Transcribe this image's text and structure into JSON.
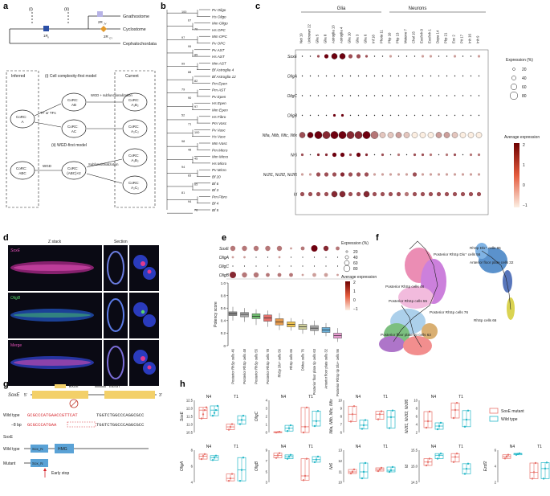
{
  "panels": {
    "a": {
      "letter": "a",
      "roman_i": "(i)",
      "roman_ii": "(ii)",
      "tips": [
        "Gnathostome",
        "Cyclostome",
        "Cephalochordata"
      ],
      "node_1r": "1R",
      "node_1r_sub": "V",
      "node_2r_jv": "2R",
      "node_2r_jv_sub": "JV",
      "node_2r_cy": "2R",
      "node_2r_cy_sub": "CY",
      "inferred": "Inferred",
      "current": "Current",
      "model_i": "(i) Cell complexity-first model",
      "model_ii": "(ii) WGD-first model",
      "tf_label": "TF or TFs",
      "wgd_sub": "WGD + subfunctionalization",
      "wgd": "WGD",
      "subfunc": "Subfunctionalization",
      "corc": "CoRC:",
      "states_i": [
        "A",
        "AB",
        "AC",
        "A₁B₂",
        "A₂C₂"
      ],
      "states_ii": [
        "ABC",
        "(ABC)×2",
        "A₁B₂",
        "A₂C₂"
      ]
    },
    "b": {
      "letter": "b",
      "leaves": [
        "Pv Oligo",
        "Hs Oligo",
        "Mm Oligo",
        "Hs OPC",
        "Mm OPC",
        "Pv OPC",
        "Pv AST",
        "Hs AST",
        "Mm AST",
        "Bf Astroglia 4",
        "Bf Astroglia 12",
        "Pm Epen",
        "Pm AST",
        "Pv Epen",
        "Hs Epen",
        "Mm Epen",
        "Hs Fibro",
        "Pm Vasc",
        "Pv Vasc",
        "Hs Vasc",
        "Mm Vasc",
        "Pm Micro",
        "Mm Micro",
        "Hs Micro",
        "Pv Micro",
        "Bf 20",
        "Bf 6",
        "Bf 3",
        "Pm Fibro",
        "Bf 4",
        "Bf 5"
      ],
      "bootstrap": [
        "100",
        "67",
        "70",
        "97",
        "99",
        "85",
        "99",
        "88",
        "82",
        "79",
        "90",
        "97",
        "52",
        "71",
        "100",
        "98",
        "48",
        "45",
        "94",
        "83",
        "65",
        "81",
        "94",
        "76"
      ]
    },
    "c": {
      "letter": "c",
      "group_glia": "Glia",
      "group_neurons": "Neurons",
      "columns": [
        "Not 19",
        "Unknown 22",
        "Glia 5",
        "Glia 8",
        "Astroglia 13",
        "Astroglia 4",
        "Glia 10",
        "Glia 3",
        "Glia 6",
        "Inf 18",
        "Photo 11",
        "Pkp 10",
        "Pkp 13",
        "Motone 7",
        "Chol 15",
        "Exc/Inh 0",
        "Exc/Inh 1",
        "Dopa 14",
        "Pkp 21",
        "Exc 2",
        "Pit 17",
        "Inh 16",
        "Inh 9"
      ],
      "rows": [
        "SoxE",
        "OligA",
        "OligC",
        "OligB",
        "Nfia, Nfib, Nfic, Nfix",
        "Nr6",
        "Nr2f1, Nr2f2, Nr2f6",
        "Id"
      ],
      "legend_size_title": "Expression (%)",
      "legend_size_values": [
        "20",
        "40",
        "60",
        "80"
      ],
      "legend_color_title": "Average expression",
      "legend_color_ticks": [
        "2",
        "1",
        "0",
        "−1"
      ]
    },
    "d": {
      "letter": "d",
      "z_stack": "Z stack",
      "section": "Section",
      "labels": [
        "SoxE",
        "OligB",
        "Merge"
      ]
    },
    "e": {
      "letter": "e",
      "rows": [
        "SoxE",
        "OligA",
        "OligC",
        "OligB"
      ],
      "legend_size_title": "Expression (%)",
      "legend_size_values": [
        "20",
        "40",
        "60",
        "80"
      ],
      "legend_color_title": "Average expression",
      "legend_color_ticks": [
        "2",
        "1",
        "0",
        "−1"
      ],
      "y_axis": "Potency score",
      "y_ticks": [
        "1.0",
        "0.8",
        "0.6",
        "0.4",
        "0.2",
        "0"
      ],
      "categories": [
        "Posterior RhSp cells 46",
        "Posterior RhSp cells 48",
        "Posterior RhSp cells 55",
        "Posterior RhSp cells 78",
        "RhSp Dlx+ cells 56",
        "RhSp cells 66",
        "DiMes cells 76",
        "Posterior floor plate tip cells 63",
        "Anterior floor plate cells 32",
        "Posterior RhSp tip Dlx+ cells 56"
      ]
    },
    "f": {
      "letter": "f",
      "labels": [
        "Posterior RhSp Dlx⁺ cells 56",
        "Posterior RhSp cells 48",
        "Posterior RhSp cells 55",
        "Posterior RhSp cells 76",
        "Anterior floor plate cells 32",
        "RhSp Dlx⁺ cells 86",
        "Posterior floor plate tip cells 63",
        "RhSp cells 66"
      ]
    },
    "g": {
      "letter": "g",
      "gene": "SoxE",
      "five": "5′",
      "three": "3′",
      "legend_exon": "Exon",
      "legend_intron": "Intron",
      "wild_type": "Wild type",
      "del": "−8 bp",
      "seq_wt_red": "GCGCCCATGAACCGTTCAT",
      "seq_wt_black": "TGGTCTGGCCCAGGCGCC",
      "seq_mut_red": "GCGCCCATGAA",
      "seq_mut_black": "TGGTCTGGCCCAGGCGCC",
      "protein_title": "SoxE",
      "protein_wt": "Wild type",
      "protein_mut": "Mutant",
      "domain_sox": "Sox_N",
      "domain_hmg": "HMG",
      "early_stop": "Early stop"
    },
    "h": {
      "letter": "h",
      "stage_n4": "N4",
      "stage_t1": "T1",
      "legend_mut": "SoxE mutant",
      "legend_wt": "Wild type",
      "colors": {
        "mutant": "#e8736c",
        "wild_type": "#27b8c8"
      },
      "plots": [
        {
          "gene": "SoxE",
          "ticks": [
            "12.5",
            "12.0",
            "11.5",
            "11.0",
            "10.5"
          ],
          "ylim": [
            10.3,
            12.6
          ],
          "n4": {
            "mut": [
              11.3,
              11.6,
              11.9,
              12.1
            ],
            "wt": [
              11.5,
              11.7,
              11.9,
              12.2
            ]
          },
          "t1": {
            "mut": [
              10.5,
              10.7,
              10.9
            ],
            "wt": [
              10.9,
              11.2,
              11.5
            ]
          }
        },
        {
          "gene": "OligC",
          "ticks": [
            "4",
            "3",
            "2",
            "1",
            "0"
          ],
          "ylim": [
            0,
            4.5
          ],
          "n4": {
            "mut": [
              0,
              0.05,
              0.1
            ],
            "wt": [
              0.2,
              0.6,
              1.0
            ]
          },
          "t1": {
            "mut": [
              0,
              0.8,
              3.5
            ],
            "wt": [
              0.9,
              1.6,
              3.0
            ]
          }
        },
        {
          "gene": "Nfia, Nfib, Nfic, Nfix",
          "ticks": [
            "10",
            "9",
            "8",
            "7",
            "6"
          ],
          "ylim": [
            6,
            10.4
          ],
          "n4": {
            "mut": [
              7.5,
              8.5,
              9.6
            ],
            "wt": [
              6.5,
              7.0,
              7.7
            ]
          },
          "t1": {
            "mut": [
              7.8,
              8.5,
              8.9
            ],
            "wt": [
              6.6,
              8.1,
              9.0
            ]
          }
        },
        {
          "gene": "Nr2f1, Nr2f2, Nr2f6",
          "ticks": [
            "10",
            "8",
            "6",
            "4",
            "2"
          ],
          "ylim": [
            1,
            11
          ],
          "n4": {
            "mut": [
              2.5,
              4.5,
              7.5
            ],
            "wt": [
              2.0,
              3.0,
              4.0
            ]
          },
          "t1": {
            "mut": [
              5.5,
              8.0,
              10.2
            ],
            "wt": [
              2.8,
              5.0,
              7.8
            ]
          }
        },
        {
          "gene": "OligA",
          "ticks": [
            "8",
            "6",
            "4"
          ],
          "ylim": [
            2.5,
            9
          ],
          "n4": {
            "mut": [
              7.2,
              7.8,
              8.2
            ],
            "wt": [
              7.0,
              7.5,
              7.9
            ]
          },
          "t1": {
            "mut": [
              2.8,
              3.3,
              4.2
            ],
            "wt": [
              2.8,
              5.0,
              7.5
            ]
          }
        },
        {
          "gene": "OligB",
          "ticks": [
            "9",
            "7",
            "5",
            "3"
          ],
          "ylim": [
            2.5,
            10
          ],
          "n4": {
            "mut": [
              8.2,
              8.8,
              9.3
            ],
            "wt": [
              8.0,
              8.5,
              8.9
            ]
          },
          "t1": {
            "mut": [
              3.0,
              4.0,
              8.0
            ],
            "wt": [
              7.2,
              7.8,
              8.5
            ]
          }
        },
        {
          "gene": "Nr6",
          "ticks": [
            "13",
            "12",
            "11",
            "10"
          ],
          "ylim": [
            9.5,
            13.5
          ],
          "n4": {
            "mut": [
              10.6,
              10.8,
              11.1
            ],
            "wt": [
              10.0,
              10.8,
              11.9
            ]
          },
          "t1": {
            "mut": [
              10.9,
              11.1,
              11.3
            ],
            "wt": [
              10.8,
              11.0,
              11.4
            ]
          }
        },
        {
          "gene": "Id",
          "ticks": [
            "15.5",
            "15.0",
            "14.5"
          ],
          "ylim": [
            14.0,
            15.9
          ],
          "n4": {
            "mut": [
              15.0,
              15.2,
              15.4
            ],
            "wt": [
              15.4,
              15.6,
              15.7
            ]
          },
          "t1": {
            "mut": [
              15.2,
              15.5,
              15.7
            ],
            "wt": [
              14.5,
              14.8,
              15.1
            ]
          }
        },
        {
          "gene": "Ezdl2",
          "ticks": [
            "6",
            "4",
            "2"
          ],
          "ylim": [
            0,
            7
          ],
          "n4": {
            "mut": [
              5.2,
              5.6,
              6.0
            ],
            "wt": [
              6.0,
              6.2,
              6.3
            ]
          },
          "t1": {
            "mut": [
              0.8,
              2.2,
              4.2
            ],
            "wt": [
              0.8,
              3.0,
              4.3
            ]
          }
        }
      ]
    }
  }
}
